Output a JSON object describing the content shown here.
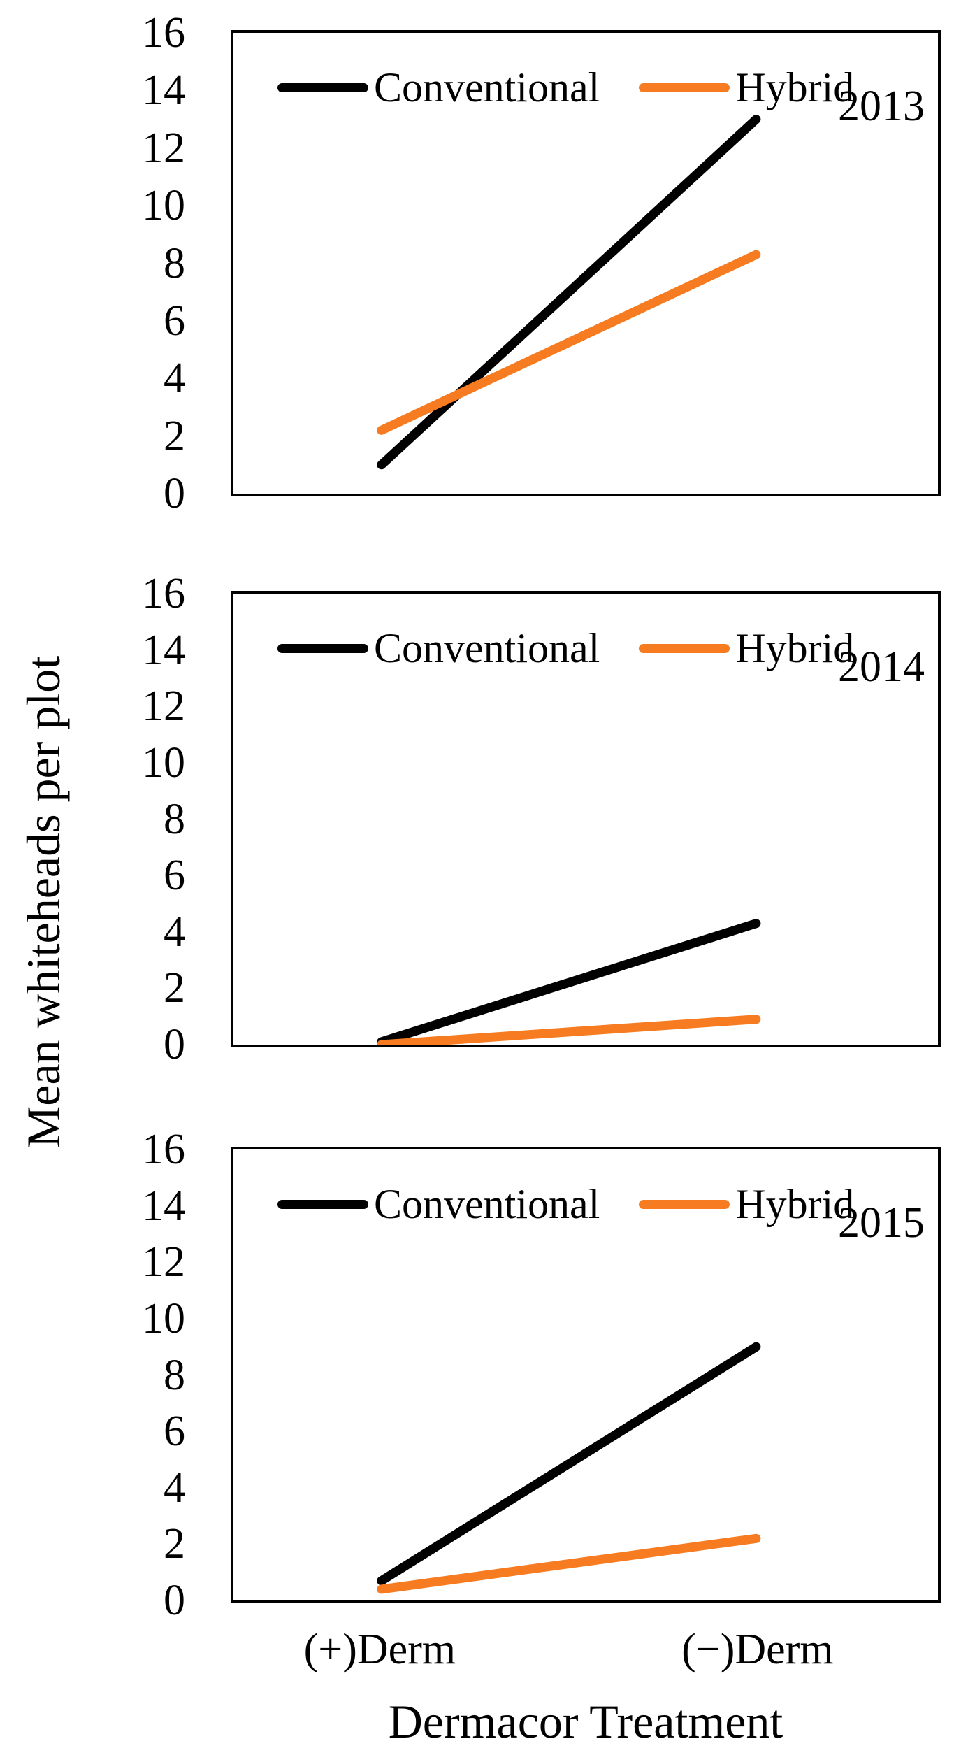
{
  "chart_data": {
    "type": "line",
    "categories": [
      "(+)Derm",
      "(−)Derm"
    ],
    "xlabel": "Dermacor Treatment",
    "ylabel": "Mean whiteheads per plot",
    "ylim": [
      0,
      16
    ],
    "yticks": [
      0,
      2,
      4,
      6,
      8,
      10,
      12,
      14,
      16
    ],
    "legend_position": "top-inside",
    "grid": false,
    "panels": [
      {
        "year": "2013",
        "series": [
          {
            "name": "Conventional",
            "color": "#000000",
            "values": [
              1.0,
              13.0
            ]
          },
          {
            "name": "Hybrid",
            "color": "#F77C21",
            "values": [
              2.2,
              8.3
            ]
          }
        ]
      },
      {
        "year": "2014",
        "series": [
          {
            "name": "Conventional",
            "color": "#000000",
            "values": [
              0.1,
              4.3
            ]
          },
          {
            "name": "Hybrid",
            "color": "#F77C21",
            "values": [
              0.0,
              0.9
            ]
          }
        ]
      },
      {
        "year": "2015",
        "series": [
          {
            "name": "Conventional",
            "color": "#000000",
            "values": [
              0.7,
              9.0
            ]
          },
          {
            "name": "Hybrid",
            "color": "#F77C21",
            "values": [
              0.4,
              2.2
            ]
          }
        ]
      }
    ]
  }
}
